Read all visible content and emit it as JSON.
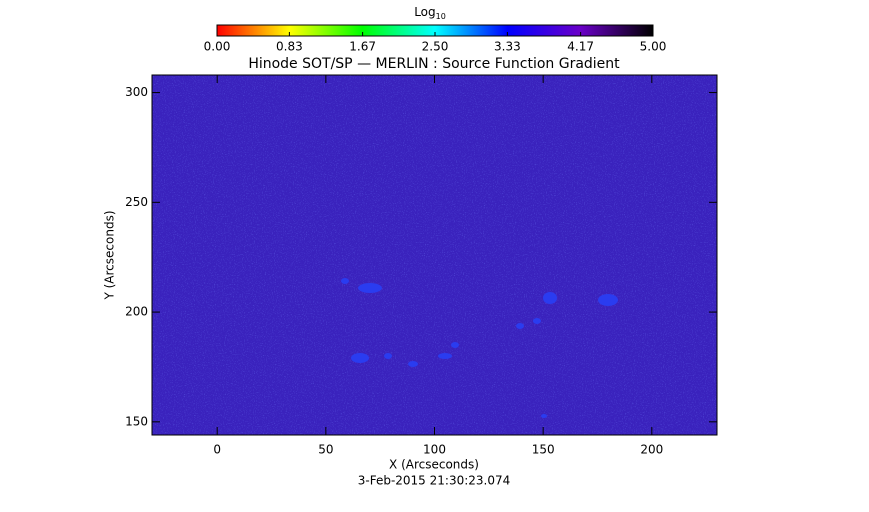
{
  "chart_data": {
    "type": "image",
    "title": "Hinode SOT/SP — MERLIN : Source Function Gradient",
    "x_label": "X (Arcseconds)",
    "y_label": "Y (Arcseconds)",
    "timestamp": "3-Feb-2015 21:30:23.074",
    "xlim": [
      -30,
      230
    ],
    "ylim": [
      144,
      308
    ],
    "xticks": [
      0,
      50,
      100,
      150,
      200
    ],
    "yticks": [
      150,
      200,
      250,
      300
    ],
    "fill_color": "#3a22bd",
    "colorbar": {
      "label": "Log",
      "label_subscript": "10",
      "lim": [
        0,
        5
      ],
      "colors": [
        "#ff0000",
        "#ffff00",
        "#00ff00",
        "#00ffff",
        "#0000ff",
        "#6a00c8",
        "#000000"
      ],
      "ticks": [
        {
          "value": 0,
          "label": "0.00"
        },
        {
          "value": 0.83,
          "label": "0.83"
        },
        {
          "value": 1.67,
          "label": "1.67"
        },
        {
          "value": 2.5,
          "label": "2.50"
        },
        {
          "value": 3.33,
          "label": "3.33"
        },
        {
          "value": 4.17,
          "label": "4.17"
        },
        {
          "value": 5,
          "label": "5.00"
        }
      ]
    }
  }
}
